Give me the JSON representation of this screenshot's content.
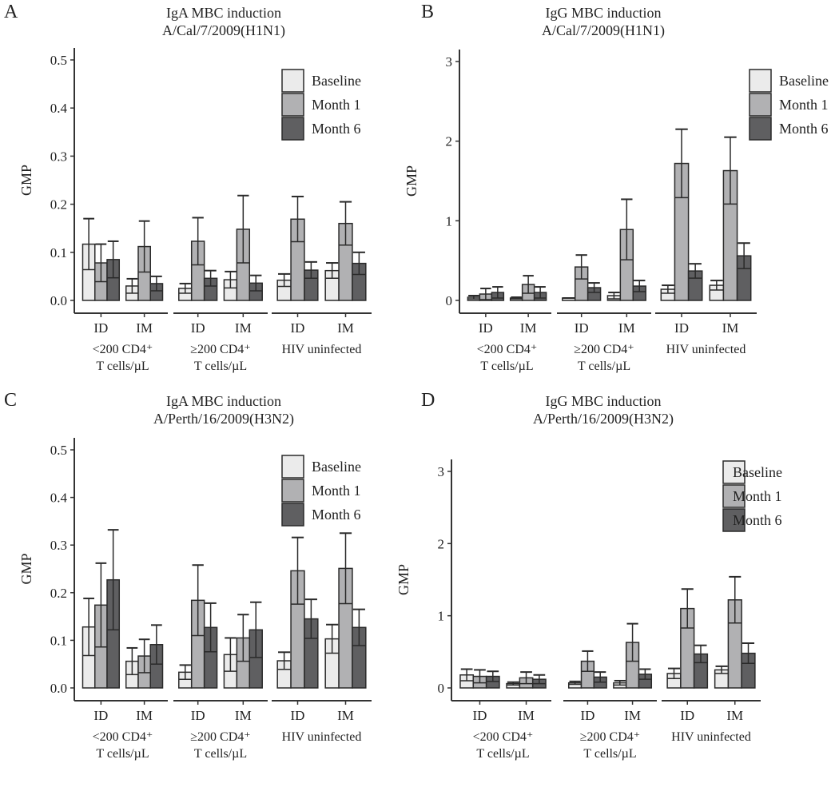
{
  "legend": [
    "Baseline",
    "Month 1",
    "Month 6"
  ],
  "colors": {
    "Baseline": "#ebebeb",
    "Month 1": "#b1b1b3",
    "Month 6": "#5f5f61",
    "edge": "#2a2a2a"
  },
  "chart_data": [
    {
      "type": "bar",
      "panel": "A",
      "title": [
        "IgA MBC induction",
        "A/Cal/7/2009(H1N1)"
      ],
      "ylabel": "GMP",
      "ylim": [
        0,
        0.5
      ],
      "yticks": [
        "0.0",
        "0.1",
        "0.2",
        "0.3",
        "0.4",
        "0.5"
      ],
      "groups": [
        {
          "label": [
            "<200 CD4⁺",
            "T cells/µL"
          ],
          "categories": [
            "ID",
            "IM"
          ]
        },
        {
          "label": [
            "≥200 CD4⁺",
            "T cells/µL"
          ],
          "categories": [
            "ID",
            "IM"
          ]
        },
        {
          "label": [
            "HIV uninfected"
          ],
          "categories": [
            "ID",
            "IM"
          ]
        }
      ],
      "series": [
        {
          "name": "Baseline",
          "values": [
            0.117,
            0.03,
            0.025,
            0.043,
            0.042,
            0.062
          ],
          "upper": [
            0.17,
            0.045,
            0.035,
            0.06,
            0.055,
            0.078
          ]
        },
        {
          "name": "Month 1",
          "values": [
            0.078,
            0.112,
            0.123,
            0.148,
            0.169,
            0.16
          ],
          "upper": [
            0.117,
            0.165,
            0.172,
            0.218,
            0.216,
            0.205
          ]
        },
        {
          "name": "Month 6",
          "values": [
            0.085,
            0.035,
            0.046,
            0.036,
            0.063,
            0.077
          ],
          "upper": [
            0.123,
            0.05,
            0.062,
            0.052,
            0.08,
            0.1
          ]
        }
      ]
    },
    {
      "type": "bar",
      "panel": "B",
      "title": [
        "IgG MBC induction",
        "A/Cal/7/2009(H1N1)"
      ],
      "ylabel": "GMP",
      "ylim": [
        0,
        3
      ],
      "yticks": [
        "0",
        "1",
        "2",
        "3"
      ],
      "groups": [
        {
          "label": [
            "<200 CD4⁺",
            "T cells/µL"
          ],
          "categories": [
            "ID",
            "IM"
          ]
        },
        {
          "label": [
            "≥200 CD4⁺",
            "T cells/µL"
          ],
          "categories": [
            "ID",
            "IM"
          ]
        },
        {
          "label": [
            "HIV uninfected"
          ],
          "categories": [
            "ID",
            "IM"
          ]
        }
      ],
      "series": [
        {
          "name": "Baseline",
          "values": [
            0.04,
            0.03,
            0.03,
            0.06,
            0.14,
            0.19
          ],
          "upper": [
            0.06,
            0.04,
            0.03,
            0.1,
            0.19,
            0.25
          ]
        },
        {
          "name": "Month 1",
          "values": [
            0.08,
            0.2,
            0.42,
            0.89,
            1.72,
            1.63
          ],
          "upper": [
            0.15,
            0.31,
            0.57,
            1.27,
            2.15,
            2.05
          ]
        },
        {
          "name": "Month 6",
          "values": [
            0.1,
            0.1,
            0.16,
            0.18,
            0.37,
            0.56
          ],
          "upper": [
            0.17,
            0.17,
            0.22,
            0.25,
            0.46,
            0.72
          ]
        }
      ]
    },
    {
      "type": "bar",
      "panel": "C",
      "title": [
        "IgA MBC induction",
        "A/Perth/16/2009(H3N2)"
      ],
      "ylabel": "GMP",
      "ylim": [
        0,
        0.5
      ],
      "yticks": [
        "0.0",
        "0.1",
        "0.2",
        "0.3",
        "0.4",
        "0.5"
      ],
      "groups": [
        {
          "label": [
            "<200 CD4⁺",
            "T cells/µL"
          ],
          "categories": [
            "ID",
            "IM"
          ]
        },
        {
          "label": [
            "≥200 CD4⁺",
            "T cells/µL"
          ],
          "categories": [
            "ID",
            "IM"
          ]
        },
        {
          "label": [
            "HIV uninfected"
          ],
          "categories": [
            "ID",
            "IM"
          ]
        }
      ],
      "series": [
        {
          "name": "Baseline",
          "values": [
            0.128,
            0.056,
            0.033,
            0.07,
            0.057,
            0.103
          ],
          "upper": [
            0.188,
            0.084,
            0.048,
            0.105,
            0.075,
            0.133
          ]
        },
        {
          "name": "Month 1",
          "values": [
            0.174,
            0.067,
            0.184,
            0.105,
            0.246,
            0.251
          ],
          "upper": [
            0.262,
            0.102,
            0.258,
            0.154,
            0.316,
            0.325
          ]
        },
        {
          "name": "Month 6",
          "values": [
            0.227,
            0.091,
            0.127,
            0.122,
            0.145,
            0.127
          ],
          "upper": [
            0.332,
            0.132,
            0.178,
            0.18,
            0.186,
            0.165
          ]
        }
      ]
    },
    {
      "type": "bar",
      "panel": "D",
      "title": [
        "IgG MBC induction",
        "A/Perth/16/2009(H3N2)"
      ],
      "ylabel": "GMP",
      "ylim": [
        0,
        3
      ],
      "yticks": [
        "0",
        "1",
        "2",
        "3"
      ],
      "groups": [
        {
          "label": [
            "<200 CD4⁺",
            "T cells/µL"
          ],
          "categories": [
            "ID",
            "IM"
          ]
        },
        {
          "label": [
            "≥200 CD4⁺",
            "T cells/µL"
          ],
          "categories": [
            "ID",
            "IM"
          ]
        },
        {
          "label": [
            "HIV uninfected"
          ],
          "categories": [
            "ID",
            "IM"
          ]
        }
      ],
      "series": [
        {
          "name": "Baseline",
          "values": [
            0.18,
            0.06,
            0.07,
            0.07,
            0.2,
            0.25
          ],
          "upper": [
            0.26,
            0.08,
            0.09,
            0.1,
            0.27,
            0.3
          ]
        },
        {
          "name": "Month 1",
          "values": [
            0.16,
            0.14,
            0.37,
            0.63,
            1.1,
            1.22
          ],
          "upper": [
            0.25,
            0.22,
            0.51,
            0.89,
            1.37,
            1.54
          ]
        },
        {
          "name": "Month 6",
          "values": [
            0.16,
            0.12,
            0.15,
            0.19,
            0.47,
            0.48
          ],
          "upper": [
            0.23,
            0.18,
            0.22,
            0.26,
            0.59,
            0.62
          ]
        }
      ]
    }
  ]
}
